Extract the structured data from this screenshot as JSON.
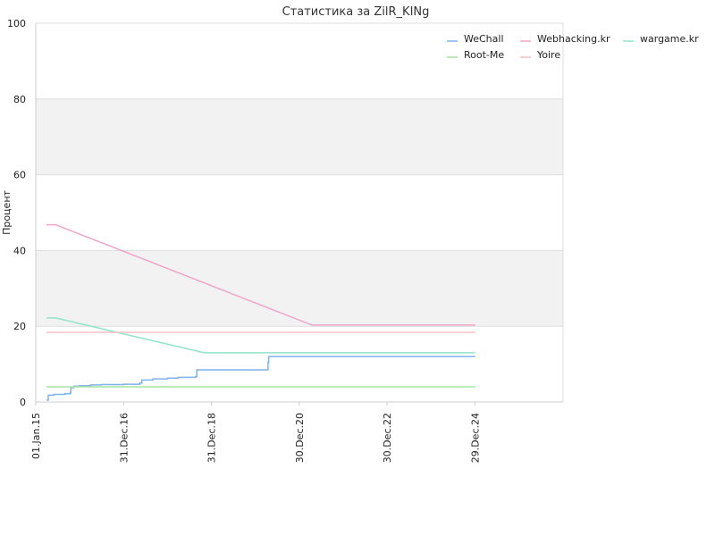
{
  "chart_data": {
    "type": "line",
    "title": "Статистика за ZilR_KINg",
    "ylabel": "Процент",
    "xlabel": "",
    "ylim": [
      0,
      100
    ],
    "yticks": [
      0,
      20,
      40,
      60,
      80,
      100
    ],
    "xlim": [
      "2015-01-01",
      "2027-01-01"
    ],
    "xticks": [
      {
        "date": "2015-01-01",
        "label": "01.Jan.15"
      },
      {
        "date": "2016-12-31",
        "label": "31.Dec.16"
      },
      {
        "date": "2018-12-31",
        "label": "31.Dec.18"
      },
      {
        "date": "2020-12-30",
        "label": "30.Dec.20"
      },
      {
        "date": "2022-12-30",
        "label": "30.Dec.22"
      },
      {
        "date": "2024-12-29",
        "label": "29.Dec.24"
      }
    ],
    "grid": true,
    "legend_position": "top-right",
    "series": [
      {
        "name": "WeChall",
        "color": "#7fb2ee",
        "step": true,
        "points": [
          [
            "2015-04-01",
            0.5
          ],
          [
            "2015-04-15",
            1.8
          ],
          [
            "2015-06-01",
            2.0
          ],
          [
            "2015-09-01",
            2.2
          ],
          [
            "2015-10-15",
            2.5
          ],
          [
            "2015-10-20",
            3.8
          ],
          [
            "2015-11-15",
            4.2
          ],
          [
            "2016-01-01",
            4.3
          ],
          [
            "2016-04-01",
            4.5
          ],
          [
            "2016-07-01",
            4.6
          ],
          [
            "2017-01-01",
            4.7
          ],
          [
            "2017-05-15",
            5.0
          ],
          [
            "2017-06-01",
            5.8
          ],
          [
            "2017-09-01",
            6.1
          ],
          [
            "2018-01-01",
            6.3
          ],
          [
            "2018-04-01",
            6.5
          ],
          [
            "2018-08-20",
            6.7
          ],
          [
            "2018-09-01",
            8.5
          ],
          [
            "2020-04-10",
            8.5
          ],
          [
            "2020-04-15",
            10.5
          ],
          [
            "2020-04-20",
            12.0
          ],
          [
            "2025-01-01",
            12.0
          ]
        ]
      },
      {
        "name": "Webhacking.kr",
        "color": "#f0a5c8",
        "step": false,
        "points": [
          [
            "2015-04-01",
            46.8
          ],
          [
            "2015-06-15",
            46.8
          ],
          [
            "2021-04-15",
            20.3
          ],
          [
            "2025-01-01",
            20.3
          ]
        ]
      },
      {
        "name": "wargame.kr",
        "color": "#8fe5c8",
        "step": false,
        "points": [
          [
            "2015-04-01",
            22.2
          ],
          [
            "2015-06-15",
            22.2
          ],
          [
            "2018-11-01",
            13.0
          ],
          [
            "2025-01-01",
            13.0
          ]
        ]
      },
      {
        "name": "Root-Me",
        "color": "#a3e6a0",
        "step": false,
        "points": [
          [
            "2015-04-01",
            4.0
          ],
          [
            "2025-01-01",
            4.0
          ]
        ]
      },
      {
        "name": "Yoire",
        "color": "#f6c2c2",
        "step": false,
        "points": [
          [
            "2015-04-01",
            18.4
          ],
          [
            "2025-01-01",
            18.4
          ]
        ]
      }
    ],
    "legend_order": [
      "WeChall",
      "Webhacking.kr",
      "wargame.kr",
      "Root-Me",
      "Yoire"
    ]
  }
}
